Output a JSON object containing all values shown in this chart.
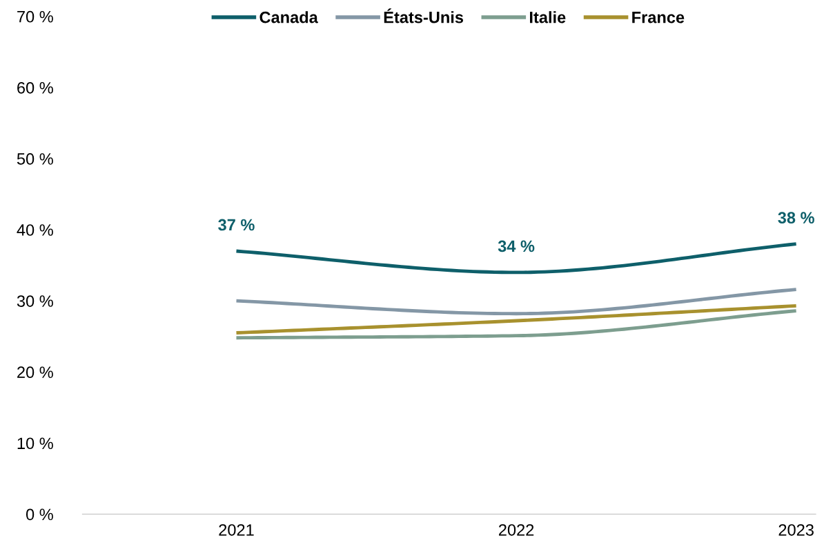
{
  "chart_data": {
    "type": "line",
    "categories": [
      "2021",
      "2022",
      "2023"
    ],
    "series": [
      {
        "name": "Canada",
        "color": "#0e5f6a",
        "values": [
          37,
          34,
          38
        ],
        "value_labels": [
          "37 %",
          "34 %",
          "38 %"
        ]
      },
      {
        "name": "États-Unis",
        "color": "#8497a6",
        "values": [
          30.0,
          28.2,
          31.6
        ]
      },
      {
        "name": "Italie",
        "color": "#7d9e8f",
        "values": [
          24.8,
          25.1,
          28.6
        ]
      },
      {
        "name": "France",
        "color": "#a8912e",
        "values": [
          25.5,
          27.2,
          29.3
        ]
      }
    ],
    "ylim": [
      0,
      70
    ],
    "yticks": [
      {
        "value": 0,
        "label": "0 %"
      },
      {
        "value": 10,
        "label": "10 %"
      },
      {
        "value": 20,
        "label": "20 %"
      },
      {
        "value": 30,
        "label": "30 %"
      },
      {
        "value": 40,
        "label": "40 %"
      },
      {
        "value": 50,
        "label": "50 %"
      },
      {
        "value": 60,
        "label": "60 %"
      },
      {
        "value": 70,
        "label": "70 %"
      }
    ],
    "grid": false,
    "legend": "top",
    "marker": "none",
    "line_style": "solid"
  }
}
